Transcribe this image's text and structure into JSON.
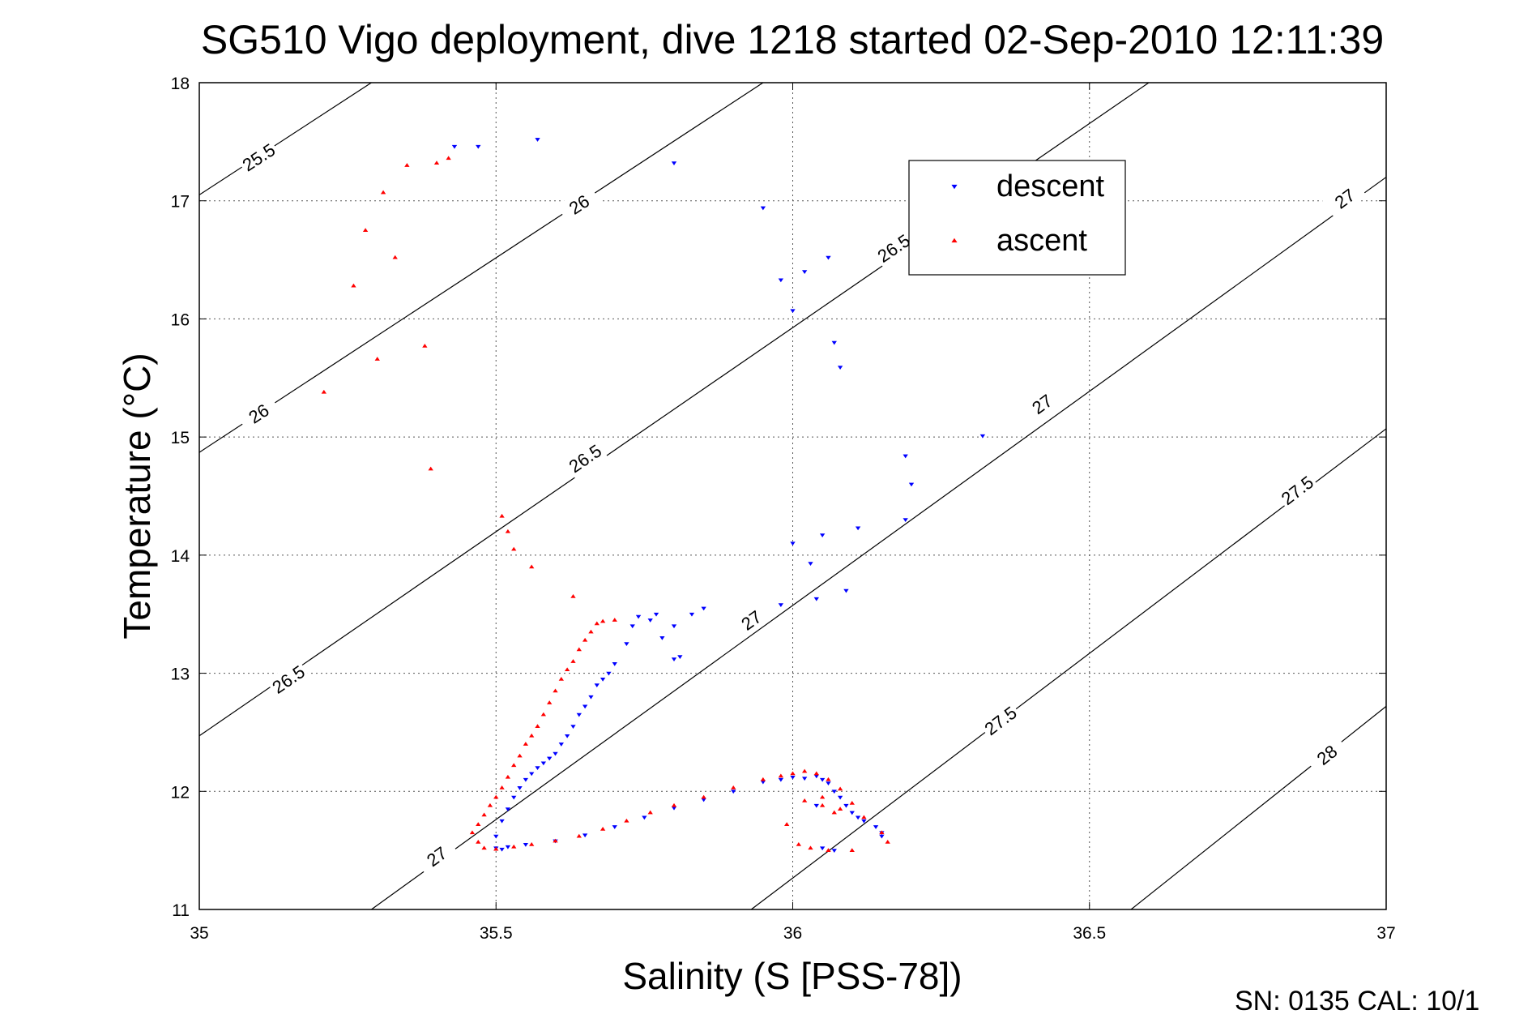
{
  "chart_data": {
    "type": "scatter",
    "title": "SG510 Vigo deployment, dive 1218 started 02-Sep-2010 12:11:39",
    "xlabel": "Salinity (S [PSS-78])",
    "ylabel": "Temperature (°C)",
    "xlim": [
      35,
      37
    ],
    "ylim": [
      11,
      18
    ],
    "x_ticks": [
      "35",
      "35.5",
      "36",
      "36.5",
      "37"
    ],
    "y_ticks": [
      "11",
      "12",
      "13",
      "14",
      "15",
      "16",
      "17",
      "18"
    ],
    "grid": true,
    "legend_position": "top-right",
    "footer": "SN: 0135  CAL: 10/1",
    "density_contours": [
      {
        "label": "25.5",
        "x": [
          35,
          35.29
        ],
        "y": [
          17.05,
          18
        ],
        "labels_at": [
          [
            35.1,
            17.37
          ]
        ]
      },
      {
        "label": "26",
        "x": [
          35,
          35.95
        ],
        "y": [
          14.87,
          18
        ],
        "labels_at": [
          [
            35.1,
            15.2
          ],
          [
            35.64,
            16.97
          ]
        ]
      },
      {
        "label": "26.5",
        "x": [
          35,
          36.6
        ],
        "y": [
          12.47,
          18
        ],
        "labels_at": [
          [
            35.15,
            12.95
          ],
          [
            35.65,
            14.82
          ],
          [
            36.17,
            16.6
          ]
        ]
      },
      {
        "label": "27",
        "x": [
          35.29,
          37
        ],
        "y": [
          11,
          17.2
        ],
        "labels_at": [
          [
            35.4,
            11.45
          ],
          [
            35.93,
            13.45
          ],
          [
            36.42,
            15.28
          ],
          [
            36.93,
            17.02
          ]
        ]
      },
      {
        "label": "27.5",
        "x": [
          35.93,
          37
        ],
        "y": [
          11,
          15.07
        ],
        "labels_at": [
          [
            36.35,
            12.6
          ],
          [
            36.85,
            14.55
          ]
        ]
      },
      {
        "label": "28",
        "x": [
          36.57,
          37
        ],
        "y": [
          11,
          12.72
        ],
        "labels_at": [
          [
            36.9,
            12.31
          ]
        ]
      }
    ],
    "series": [
      {
        "name": "descent",
        "color": "#0000ff",
        "marker": "triangle-down",
        "x": [
          35.43,
          35.47,
          35.57,
          35.8,
          35.95,
          35.98,
          36.02,
          36.06,
          36.0,
          36.07,
          36.08,
          36.32,
          36.19,
          36.2,
          36.19,
          36.11,
          36.0,
          36.05,
          36.03,
          36.09,
          35.98,
          36.04,
          35.85,
          35.83,
          35.8,
          35.78,
          35.77,
          35.76,
          35.74,
          35.73,
          35.72,
          35.81,
          35.8,
          35.7,
          35.69,
          35.68,
          35.67,
          35.66,
          35.65,
          35.64,
          35.63,
          35.62,
          35.61,
          35.6,
          35.59,
          35.58,
          35.57,
          35.56,
          35.55,
          35.54,
          35.53,
          35.52,
          35.51,
          35.5,
          35.5,
          35.51,
          35.52,
          35.55,
          35.6,
          35.65,
          35.7,
          35.75,
          35.8,
          35.85,
          35.9,
          35.95,
          35.98,
          36.0,
          36.02,
          36.04,
          36.05,
          36.06,
          36.07,
          36.08,
          36.09,
          36.1,
          36.11,
          36.12,
          36.14,
          36.15,
          36.15,
          36.05,
          36.07,
          36.04
        ],
        "y": [
          17.46,
          17.46,
          17.52,
          17.32,
          16.94,
          16.33,
          16.4,
          16.52,
          16.07,
          15.8,
          15.59,
          15.01,
          14.84,
          14.6,
          14.3,
          14.23,
          14.1,
          14.17,
          13.93,
          13.7,
          13.58,
          13.63,
          13.55,
          13.5,
          13.4,
          13.3,
          13.5,
          13.45,
          13.48,
          13.4,
          13.25,
          13.14,
          13.12,
          13.08,
          13.0,
          12.95,
          12.9,
          12.8,
          12.72,
          12.65,
          12.55,
          12.47,
          12.4,
          12.32,
          12.28,
          12.24,
          12.2,
          12.15,
          12.1,
          12.03,
          11.95,
          11.85,
          11.75,
          11.62,
          11.52,
          11.51,
          11.53,
          11.55,
          11.58,
          11.63,
          11.7,
          11.78,
          11.86,
          11.93,
          12.0,
          12.08,
          12.1,
          12.12,
          12.11,
          12.13,
          12.1,
          12.07,
          12.0,
          11.95,
          11.88,
          11.82,
          11.78,
          11.75,
          11.7,
          11.65,
          11.62,
          11.52,
          11.5,
          11.88
        ]
      },
      {
        "name": "ascent",
        "color": "#ff0000",
        "marker": "triangle-up",
        "x": [
          35.42,
          35.4,
          35.35,
          35.31,
          35.28,
          35.33,
          35.26,
          35.38,
          35.3,
          35.21,
          35.39,
          35.51,
          35.52,
          35.53,
          35.56,
          35.63,
          35.7,
          35.68,
          35.67,
          35.66,
          35.65,
          35.64,
          35.63,
          35.62,
          35.61,
          35.6,
          35.59,
          35.58,
          35.57,
          35.56,
          35.55,
          35.54,
          35.53,
          35.52,
          35.51,
          35.5,
          35.49,
          35.48,
          35.47,
          35.46,
          35.47,
          35.48,
          35.5,
          35.53,
          35.56,
          35.6,
          35.64,
          35.68,
          35.72,
          35.76,
          35.8,
          35.85,
          35.9,
          35.95,
          35.98,
          36.0,
          36.02,
          36.04,
          36.06,
          36.08,
          36.1,
          36.12,
          36.15,
          36.16,
          36.1,
          36.06,
          36.03,
          36.01,
          35.99,
          36.05,
          36.08,
          36.07,
          36.05,
          36.02
        ],
        "y": [
          17.36,
          17.32,
          17.3,
          17.07,
          16.75,
          16.52,
          16.28,
          15.77,
          15.66,
          15.38,
          14.73,
          14.33,
          14.2,
          14.05,
          13.9,
          13.65,
          13.45,
          13.44,
          13.42,
          13.35,
          13.28,
          13.2,
          13.1,
          13.03,
          12.95,
          12.85,
          12.75,
          12.65,
          12.55,
          12.47,
          12.4,
          12.3,
          12.22,
          12.12,
          12.03,
          11.95,
          11.88,
          11.8,
          11.72,
          11.65,
          11.57,
          11.52,
          11.51,
          11.53,
          11.55,
          11.58,
          11.62,
          11.68,
          11.75,
          11.82,
          11.88,
          11.95,
          12.03,
          12.1,
          12.13,
          12.15,
          12.17,
          12.15,
          12.1,
          12.02,
          11.9,
          11.78,
          11.65,
          11.57,
          11.5,
          11.5,
          11.52,
          11.55,
          11.72,
          11.95,
          11.85,
          11.82,
          11.88,
          11.92
        ]
      }
    ]
  }
}
